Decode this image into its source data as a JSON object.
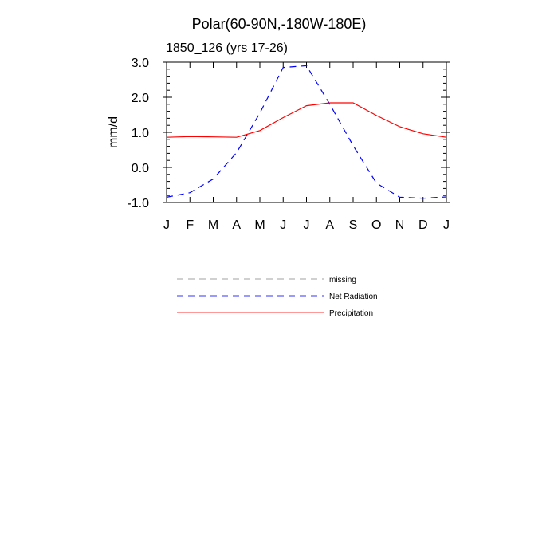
{
  "chart_data": {
    "type": "line",
    "title": "Polar(60-90N,-180W-180E)",
    "subtitle": "1850_126 (yrs 17-26)",
    "xlabel": "",
    "ylabel": "mm/d",
    "categories": [
      "J",
      "F",
      "M",
      "A",
      "M",
      "J",
      "J",
      "A",
      "S",
      "O",
      "N",
      "D",
      "J"
    ],
    "ylim": [
      -1.0,
      3.0
    ],
    "yticks": [
      -1.0,
      0.0,
      1.0,
      2.0,
      3.0
    ],
    "ytick_labels": [
      "-1.0",
      "0.0",
      "1.0",
      "2.0",
      "3.0"
    ],
    "series": [
      {
        "name": "Net Radiation",
        "color": "#0000ff",
        "dash": "dashed",
        "values": [
          -0.85,
          -0.72,
          -0.33,
          0.42,
          1.55,
          2.85,
          2.9,
          1.8,
          0.62,
          -0.45,
          -0.85,
          -0.88,
          -0.84
        ]
      },
      {
        "name": "Precipitation",
        "color": "#ff0000",
        "dash": "solid",
        "values": [
          0.86,
          0.88,
          0.87,
          0.86,
          1.05,
          1.42,
          1.76,
          1.84,
          1.84,
          1.48,
          1.16,
          0.96,
          0.86
        ]
      }
    ],
    "legend": {
      "position": "bottom-center",
      "entries": [
        {
          "label": "missing",
          "color": "#888888",
          "dash": "dashed"
        },
        {
          "label": "Net Radiation",
          "color": "#0000ff",
          "dash": "dashed"
        },
        {
          "label": "Precipitation",
          "color": "#ff0000",
          "dash": "solid"
        }
      ]
    },
    "grid": false
  }
}
